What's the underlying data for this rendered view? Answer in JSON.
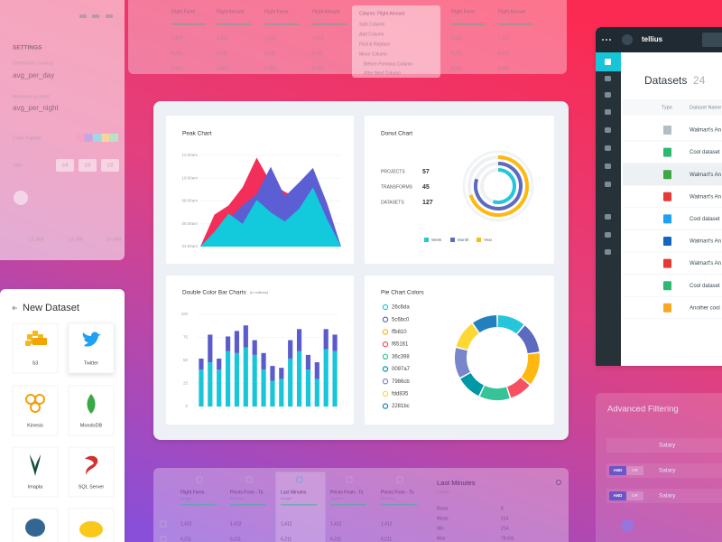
{
  "settings_panel": {
    "title": "SETTINGS",
    "dimension_label": "Dimension (x-axis)",
    "dimension_value": "avg_per_day",
    "measure_label": "Measure (y-axis)",
    "measure_value": "avg_per_night",
    "color_palette_label": "Color Palette",
    "size_label": "Size",
    "size_options": [
      "1/4",
      "1/3",
      "1/2"
    ],
    "axis_labels": [
      "12 JAN",
      "14 JAN",
      "15 JAN"
    ]
  },
  "top_table": {
    "columns": [
      {
        "name": "Flight Fares",
        "type": "Integer"
      },
      {
        "name": "Flight Amount",
        "type": "Integer"
      },
      {
        "name": "Flight Fares",
        "type": "Integer"
      },
      {
        "name": "Flight Amount",
        "type": "Integer"
      },
      {
        "name": "Flight Fares",
        "type": "Integer"
      },
      {
        "name": "Flight Amount",
        "type": "Integer"
      }
    ],
    "rows": [
      [
        "1,412",
        "1,412",
        "1,412",
        "1,412",
        "1,412",
        "1,412"
      ],
      [
        "6,211",
        "6,211",
        "6,211",
        "6,211",
        "6,211",
        "6,211"
      ],
      [
        "9,451",
        "9,451",
        "9,451",
        "9,451",
        "9,451",
        "9,451"
      ]
    ]
  },
  "context_menu": {
    "title": "Column: Flight Amount",
    "items": [
      "Split Column",
      "Add Column",
      "Find & Replace",
      "Move Column"
    ],
    "subitems": [
      "Before Previous Column",
      "After Next Column"
    ]
  },
  "dashboard": {
    "peak_chart": {
      "type": "area",
      "title": "Peak Chart",
      "ylim": [
        4,
        12
      ],
      "yticks": [
        {
          "value": 12,
          "label": "12:00am"
        },
        {
          "value": 10,
          "label": "10:00am"
        },
        {
          "value": 8,
          "label": "08:00am"
        },
        {
          "value": 6,
          "label": "06:00am"
        },
        {
          "value": 4,
          "label": "04:00am"
        }
      ],
      "series": [
        {
          "color": "#f32e58",
          "values": [
            4,
            6.8,
            7.6,
            9.2,
            11.8,
            9.6,
            8.8,
            8.2,
            6.2,
            4.6,
            4
          ]
        },
        {
          "color": "#5b5fd3",
          "values": [
            4,
            5.0,
            6.4,
            7.6,
            8.6,
            11.0,
            8.4,
            9.6,
            10.9,
            7.8,
            4
          ]
        },
        {
          "color": "#13c9dc",
          "values": [
            4,
            5.3,
            6.9,
            6.0,
            8.1,
            7.0,
            6.2,
            7.3,
            9.2,
            6.4,
            4
          ]
        }
      ]
    },
    "donut_chart": {
      "type": "radial",
      "title": "Donut Chart",
      "stats": [
        {
          "label": "PROJECTS",
          "value": "57"
        },
        {
          "label": "TRANSFORMS",
          "value": "45"
        },
        {
          "label": "DATASETS",
          "value": "127"
        }
      ],
      "series": [
        {
          "name": "Week",
          "color": "#26c6da",
          "value": 55
        },
        {
          "name": "Month",
          "color": "#5c6bc0",
          "value": 80
        },
        {
          "name": "Year",
          "color": "#ffb810",
          "value": 70
        }
      ]
    },
    "bar_chart": {
      "type": "stacked-bar",
      "title": "Double Color Bar Charts",
      "subtitle": "(in millions)",
      "ylim": [
        0,
        100
      ],
      "yticks": [
        100,
        75,
        50,
        25,
        0
      ],
      "series": [
        {
          "color": "#19c6d8",
          "values": [
            40,
            48,
            40,
            60,
            58,
            64,
            56,
            40,
            28,
            30,
            52,
            60,
            40,
            30,
            62,
            60
          ]
        },
        {
          "color": "#5a5ccc",
          "values": [
            12,
            30,
            12,
            16,
            24,
            24,
            16,
            18,
            16,
            12,
            20,
            24,
            16,
            18,
            22,
            18
          ]
        }
      ]
    },
    "pie_chart": {
      "type": "donut",
      "title": "Pie Chart Colors",
      "series": [
        {
          "name": "26c6da",
          "color": "#26c6da",
          "value": 11
        },
        {
          "name": "5c6bc0",
          "color": "#5c6bc0",
          "value": 12
        },
        {
          "name": "ffb810",
          "color": "#ffb810",
          "value": 13
        },
        {
          "name": "f65161",
          "color": "#f65161",
          "value": 9
        },
        {
          "name": "36c398",
          "color": "#36c398",
          "value": 12
        },
        {
          "name": "0097a7",
          "color": "#0097a7",
          "value": 10
        },
        {
          "name": "7986cb",
          "color": "#7986cb",
          "value": 12
        },
        {
          "name": "fdd835",
          "color": "#fdd835",
          "value": 11
        },
        {
          "name": "2281bc",
          "color": "#2281bc",
          "value": 10
        }
      ]
    }
  },
  "new_dataset": {
    "title": "New Dataset",
    "sources": [
      "S3",
      "Twitter",
      "Kinesis",
      "MondoDB",
      "Imapla",
      "SQL Server"
    ]
  },
  "tellius": {
    "brand": "tellius",
    "title": "Datasets",
    "count": "24",
    "columns": [
      "Type",
      "Dataset Name"
    ],
    "rows": [
      "Walmart's An",
      "Cool dataset",
      "Walmart's An",
      "Walmart's An",
      "Cool dataset",
      "Walmart's An",
      "Walmart's An",
      "Cool dataset",
      "Another cool"
    ]
  },
  "advanced_filtering": {
    "title": "Advanced Filtering",
    "filters": [
      {
        "field": "Salary"
      },
      {
        "operators": [
          "AND",
          "OR"
        ],
        "field": "Salary"
      },
      {
        "operators": [
          "AND",
          "OR"
        ],
        "field": "Salary"
      }
    ]
  },
  "bottom_table": {
    "columns": [
      {
        "name": "Flight Fares",
        "type": "Integer"
      },
      {
        "name": "Prices From - To",
        "type": "Boolean"
      },
      {
        "name": "Last Minutes",
        "type": "Integer"
      },
      {
        "name": "Prices From - To",
        "type": "Boolean"
      },
      {
        "name": "Prices From - To",
        "type": "Boolean"
      }
    ],
    "rows": [
      [
        "1,412",
        "1,412",
        "1,412",
        "1,412",
        "1,412"
      ],
      [
        "6,211",
        "6,211",
        "6,211",
        "6,211",
        "6,211"
      ]
    ],
    "details": {
      "title": "Last Minutes",
      "type": "Integer",
      "stats": [
        [
          "Rows",
          "8"
        ],
        [
          "Mean",
          "214"
        ],
        [
          "Min",
          "214"
        ],
        [
          "Max",
          "79,411"
        ]
      ]
    }
  }
}
